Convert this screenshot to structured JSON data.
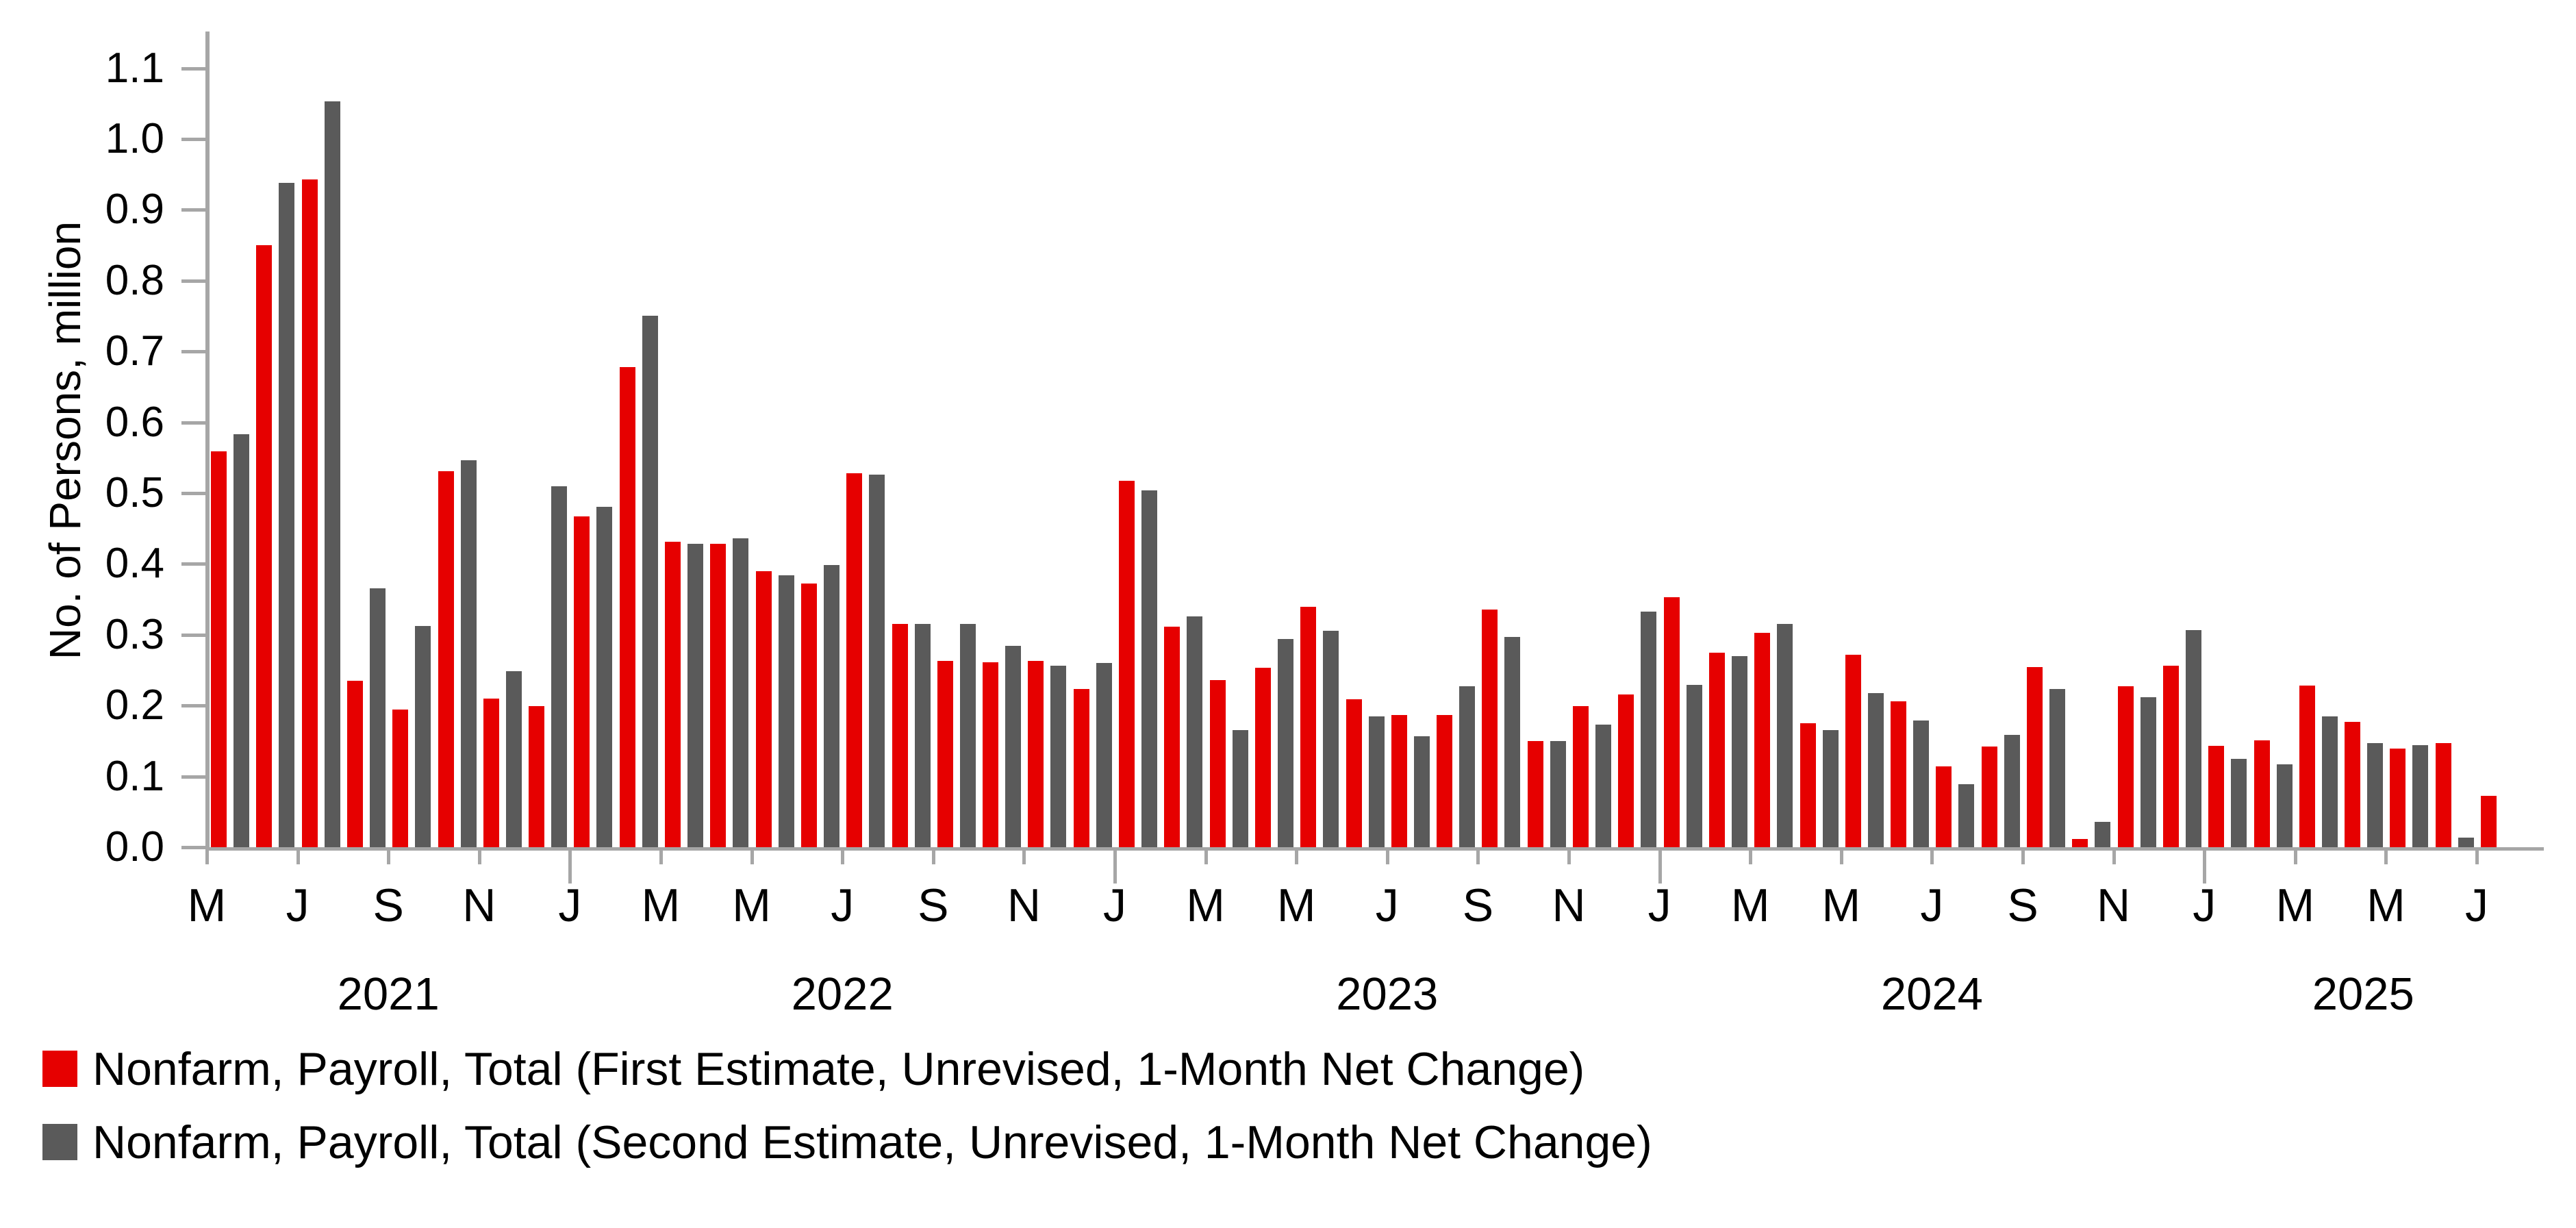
{
  "chart_data": {
    "type": "bar",
    "title": "",
    "xlabel": "",
    "ylabel": "No. of Persons, million",
    "ylim": [
      0.0,
      1.1
    ],
    "grid": false,
    "legend_position": "bottom-left",
    "axis_color": "#a6a6a6",
    "text_color": "#000000",
    "y_tick_labels": [
      "0.0",
      "0.1",
      "0.2",
      "0.3",
      "0.4",
      "0.5",
      "0.6",
      "0.7",
      "0.8",
      "0.9",
      "1.0",
      "1.1"
    ],
    "categories": [
      {
        "m": "May 2021",
        "t": "M"
      },
      {
        "m": "Jun 2021",
        "t": ""
      },
      {
        "m": "Jul 2021",
        "t": "J"
      },
      {
        "m": "Aug 2021",
        "t": ""
      },
      {
        "m": "Sep 2021",
        "t": "S"
      },
      {
        "m": "Oct 2021",
        "t": ""
      },
      {
        "m": "Nov 2021",
        "t": "N"
      },
      {
        "m": "Dec 2021",
        "t": ""
      },
      {
        "m": "Jan 2022",
        "t": "J",
        "ys": true
      },
      {
        "m": "Feb 2022",
        "t": ""
      },
      {
        "m": "Mar 2022",
        "t": "M"
      },
      {
        "m": "Apr 2022",
        "t": ""
      },
      {
        "m": "May 2022",
        "t": "M"
      },
      {
        "m": "Jun 2022",
        "t": ""
      },
      {
        "m": "Jul 2022",
        "t": "J"
      },
      {
        "m": "Aug 2022",
        "t": ""
      },
      {
        "m": "Sep 2022",
        "t": "S"
      },
      {
        "m": "Oct 2022",
        "t": ""
      },
      {
        "m": "Nov 2022",
        "t": "N"
      },
      {
        "m": "Dec 2022",
        "t": ""
      },
      {
        "m": "Jan 2023",
        "t": "J",
        "ys": true
      },
      {
        "m": "Feb 2023",
        "t": ""
      },
      {
        "m": "Mar 2023",
        "t": "M"
      },
      {
        "m": "Apr 2023",
        "t": ""
      },
      {
        "m": "May 2023",
        "t": "M"
      },
      {
        "m": "Jun 2023",
        "t": ""
      },
      {
        "m": "Jul 2023",
        "t": "J"
      },
      {
        "m": "Aug 2023",
        "t": ""
      },
      {
        "m": "Sep 2023",
        "t": "S"
      },
      {
        "m": "Oct 2023",
        "t": ""
      },
      {
        "m": "Nov 2023",
        "t": "N"
      },
      {
        "m": "Dec 2023",
        "t": ""
      },
      {
        "m": "Jan 2024",
        "t": "J",
        "ys": true
      },
      {
        "m": "Feb 2024",
        "t": ""
      },
      {
        "m": "Mar 2024",
        "t": "M"
      },
      {
        "m": "Apr 2024",
        "t": ""
      },
      {
        "m": "May 2024",
        "t": "M"
      },
      {
        "m": "Jun 2024",
        "t": ""
      },
      {
        "m": "Jul 2024",
        "t": "J"
      },
      {
        "m": "Aug 2024",
        "t": ""
      },
      {
        "m": "Sep 2024",
        "t": "S"
      },
      {
        "m": "Oct 2024",
        "t": ""
      },
      {
        "m": "Nov 2024",
        "t": "N"
      },
      {
        "m": "Dec 2024",
        "t": ""
      },
      {
        "m": "Jan 2025",
        "t": "J",
        "ys": true
      },
      {
        "m": "Feb 2025",
        "t": ""
      },
      {
        "m": "Mar 2025",
        "t": "M"
      },
      {
        "m": "Apr 2025",
        "t": ""
      },
      {
        "m": "May 2025",
        "t": "M"
      },
      {
        "m": "Jun 2025",
        "t": ""
      },
      {
        "m": "Jul 2025",
        "t": "J"
      }
    ],
    "series": [
      {
        "name": "Nonfarm, Payroll, Total (First Estimate, Unrevised, 1-Month Net Change)",
        "color": "#e60000",
        "values": [
          0.559,
          0.85,
          0.943,
          0.235,
          0.194,
          0.531,
          0.21,
          0.199,
          0.467,
          0.678,
          0.431,
          0.428,
          0.39,
          0.372,
          0.528,
          0.315,
          0.263,
          0.261,
          0.263,
          0.223,
          0.517,
          0.311,
          0.236,
          0.253,
          0.339,
          0.209,
          0.187,
          0.187,
          0.336,
          0.15,
          0.199,
          0.216,
          0.353,
          0.275,
          0.303,
          0.175,
          0.272,
          0.206,
          0.114,
          0.142,
          0.254,
          0.012,
          0.227,
          0.256,
          0.143,
          0.151,
          0.228,
          0.177,
          0.139,
          0.147,
          0.073
        ]
      },
      {
        "name": "Nonfarm, Payroll, Total (Second Estimate, Unrevised, 1-Month Net Change)",
        "color": "#5a5a5a",
        "values": [
          0.583,
          0.938,
          1.053,
          0.366,
          0.312,
          0.546,
          0.249,
          0.51,
          0.481,
          0.75,
          0.428,
          0.436,
          0.384,
          0.398,
          0.526,
          0.315,
          0.315,
          0.284,
          0.256,
          0.26,
          0.504,
          0.326,
          0.165,
          0.294,
          0.306,
          0.185,
          0.157,
          0.227,
          0.297,
          0.15,
          0.173,
          0.333,
          0.229,
          0.27,
          0.315,
          0.165,
          0.218,
          0.179,
          0.089,
          0.159,
          0.223,
          0.036,
          0.212,
          0.307,
          0.125,
          0.117,
          0.185,
          0.147,
          0.144,
          0.014,
          null
        ]
      }
    ],
    "year_labels": [
      {
        "label": "2021",
        "start": 0,
        "end": 7
      },
      {
        "label": "2022",
        "start": 8,
        "end": 19
      },
      {
        "label": "2023",
        "start": 20,
        "end": 31
      },
      {
        "label": "2024",
        "start": 32,
        "end": 43
      },
      {
        "label": "2025",
        "start": 44,
        "end": 50
      }
    ]
  }
}
